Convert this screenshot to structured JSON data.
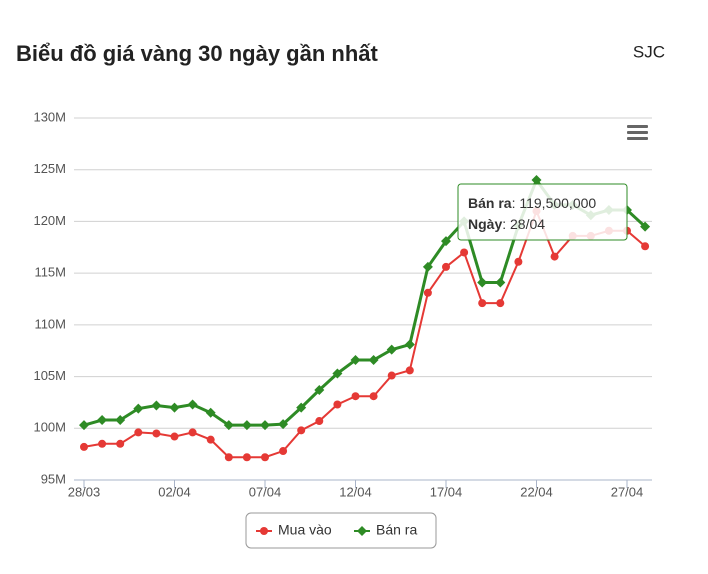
{
  "chart_data": {
    "type": "line",
    "title": "Biểu đồ giá vàng 30 ngày gần nhất",
    "subtitle": "SJC",
    "categories": [
      "28/03",
      null,
      null,
      null,
      null,
      "02/04",
      null,
      null,
      null,
      null,
      "07/04",
      null,
      null,
      null,
      null,
      "12/04",
      null,
      null,
      null,
      null,
      "17/04",
      null,
      null,
      null,
      null,
      "22/04",
      null,
      null,
      null,
      null,
      "27/04",
      null
    ],
    "series": [
      {
        "name": "Mua vào",
        "color": "#e53935",
        "marker": "circle",
        "values": [
          98200000,
          98500000,
          98500000,
          99600000,
          99500000,
          99200000,
          99600000,
          98900000,
          97200000,
          97200000,
          97200000,
          97800000,
          99800000,
          100700000,
          102300000,
          103100000,
          103100000,
          105100000,
          105600000,
          113100000,
          115600000,
          117000000,
          112100000,
          112100000,
          116100000,
          121000000,
          116600000,
          118600000,
          118600000,
          119100000,
          119100000,
          117600000
        ]
      },
      {
        "name": "Bán ra",
        "color": "#2e8b25",
        "marker": "diamond",
        "values": [
          100300000,
          100800000,
          100800000,
          101900000,
          102200000,
          102000000,
          102300000,
          101500000,
          100300000,
          100300000,
          100300000,
          100400000,
          102000000,
          103700000,
          105300000,
          106600000,
          106600000,
          107600000,
          108100000,
          115600000,
          118100000,
          120000000,
          114100000,
          114100000,
          119600000,
          124000000,
          121600000,
          121600000,
          120600000,
          121100000,
          121100000,
          119500000
        ]
      }
    ],
    "ylim": [
      95000000,
      130000000
    ],
    "yticks": [
      {
        "value": 95000000,
        "label": "95M"
      },
      {
        "value": 100000000,
        "label": "100M"
      },
      {
        "value": 105000000,
        "label": "105M"
      },
      {
        "value": 110000000,
        "label": "110M"
      },
      {
        "value": 115000000,
        "label": "115M"
      },
      {
        "value": 120000000,
        "label": "120M"
      },
      {
        "value": 125000000,
        "label": "125M"
      },
      {
        "value": 130000000,
        "label": "130M"
      }
    ],
    "grid": true,
    "legend": "bottom",
    "tooltip": {
      "series_label": "Bán ra",
      "value": "119,500,000",
      "date_label": "Ngày",
      "date": "28/04"
    }
  }
}
